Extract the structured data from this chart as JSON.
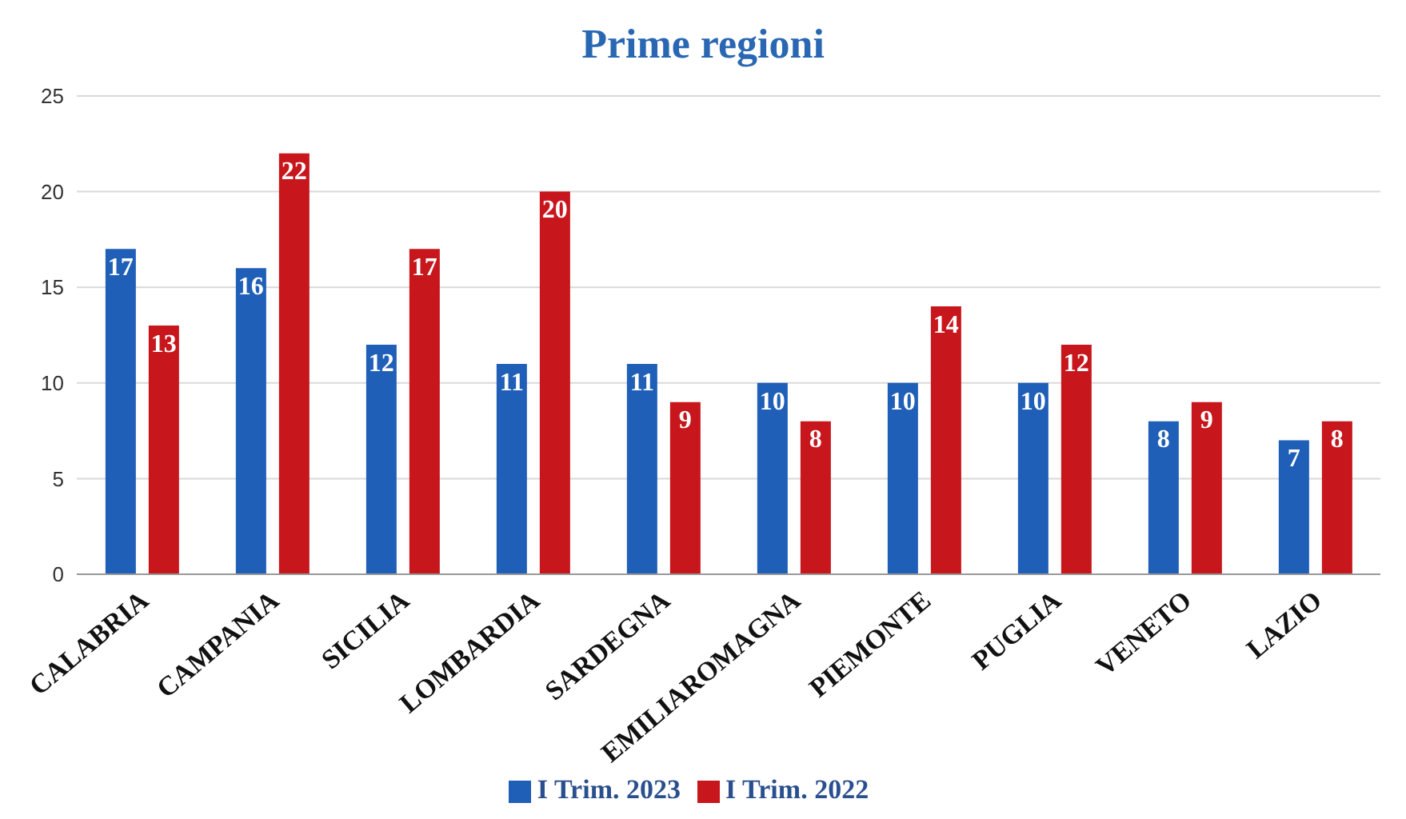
{
  "chart_data": {
    "type": "bar",
    "title": "Prime regioni",
    "categories": [
      "CALABRIA",
      "CAMPANIA",
      "SICILIA",
      "LOMBARDIA",
      "SARDEGNA",
      "EMILIAROMAGNA",
      "PIEMONTE",
      "PUGLIA",
      "VENETO",
      "LAZIO"
    ],
    "series": [
      {
        "name": "I Trim. 2023",
        "color": "#1f5fb8",
        "values": [
          17,
          16,
          12,
          11,
          11,
          10,
          10,
          10,
          8,
          7
        ]
      },
      {
        "name": "I Trim. 2022",
        "color": "#c8161d",
        "values": [
          13,
          22,
          17,
          20,
          9,
          8,
          14,
          12,
          9,
          8
        ]
      }
    ],
    "ylim": [
      0,
      25
    ],
    "yticks": [
      0,
      5,
      10,
      15,
      20,
      25
    ],
    "grid": "y",
    "legend": "bottom",
    "data_labels": true
  }
}
